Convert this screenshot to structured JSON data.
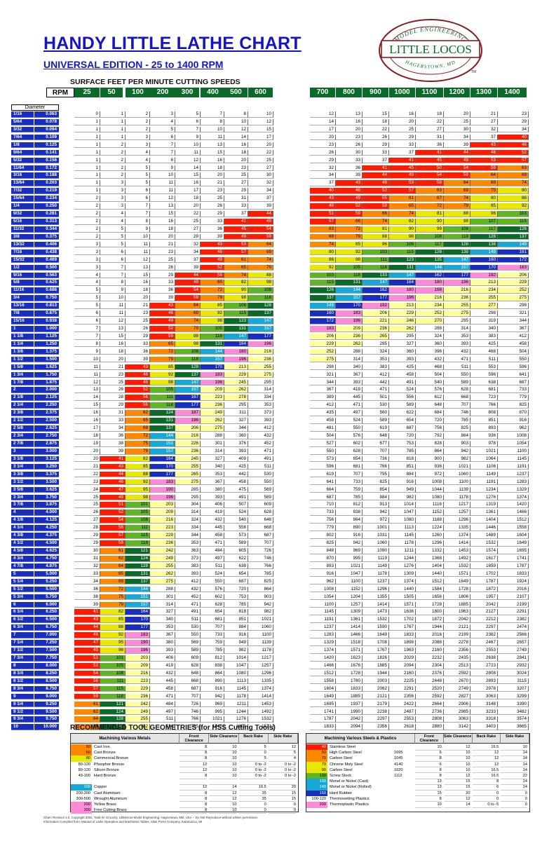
{
  "header": {
    "title": "HANDY LITTLE LATHE CHART",
    "subtitle": "UNIVERSAL EDITION - 25 to 1400 RPM",
    "sfpm_label": "SURFACE FEET PER MINUTE CUTTING SPEEDS",
    "rpm_label": "RPM",
    "diameter_label": "Diameter"
  },
  "logo": {
    "top": "MODEL ENGINEERING",
    "main": "LITTLE LOCOS",
    "bottom": "HAGERSTOWN, MD",
    "tm": "TM"
  },
  "rpm": [
    25,
    50,
    100,
    200,
    300,
    400,
    500,
    600,
    700,
    800,
    900,
    1000,
    1100,
    1200,
    1300,
    1400
  ],
  "fractions": [
    "1/16",
    "5/64",
    "3/32",
    "7/64",
    "1/8",
    "9/64",
    "5/32",
    "11/64",
    "3/16",
    "13/64",
    "7/32",
    "15/64",
    "1/4",
    "9/32",
    "5/16",
    "11/32",
    "3/8",
    "13/32",
    "7/16",
    "15/32",
    "1/2",
    "9/16",
    "5/8",
    "11/16",
    "3/4",
    "13/16",
    "7/8",
    "15/16",
    "1",
    "1 1/8",
    "1 1/4",
    "1 3/8",
    "1 1/2",
    "1 5/8",
    "1 3/4",
    "1 7/8",
    "2",
    "2 1/8",
    "2 1/4",
    "2 3/8",
    "2 1/2",
    "2 5/8",
    "2 3/4",
    "2 7/8",
    "3",
    "3 1/8",
    "3 1/4",
    "3 3/8",
    "3 1/2",
    "3 5/8",
    "3 3/4",
    "3 7/8",
    "4",
    "4 1/8",
    "4 1/4",
    "4 3/8",
    "4 1/2",
    "4 5/8",
    "4 3/4",
    "4 7/8",
    "5",
    "5 1/4",
    "5 1/2",
    "5 3/4",
    "6",
    "6 1/4",
    "6 1/2",
    "6 3/4",
    "7",
    "7 1/4",
    "7 1/2",
    "7 3/4",
    "8",
    "8 1/4",
    "8 1/2",
    "8 3/4",
    "9",
    "9 1/4",
    "9 1/2",
    "9 3/4",
    "10"
  ],
  "decimals": [
    "0.063",
    "0.078",
    "0.094",
    "0.109",
    "0.125",
    "0.141",
    "0.156",
    "0.172",
    "0.188",
    "0.203",
    "0.219",
    "0.234",
    "0.250",
    "0.281",
    "0.313",
    "0.344",
    "0.375",
    "0.406",
    "0.438",
    "0.469",
    "0.500",
    "0.563",
    "0.625",
    "0.688",
    "0.750",
    "0.813",
    "0.875",
    "0.938",
    "1.000",
    "1.125",
    "1.250",
    "1.375",
    "1.500",
    "1.625",
    "1.750",
    "1.875",
    "2.000",
    "2.125",
    "2.250",
    "2.375",
    "2.500",
    "2.625",
    "2.750",
    "2.875",
    "3.000",
    "3.125",
    "3.250",
    "3.375",
    "3.500",
    "3.625",
    "3.750",
    "3.875",
    "4.000",
    "4.125",
    "4.250",
    "4.375",
    "4.500",
    "4.625",
    "4.750",
    "4.875",
    "5.000",
    "5.250",
    "5.500",
    "5.750",
    "6.000",
    "6.250",
    "6.500",
    "6.750",
    "7.000",
    "7.250",
    "7.500",
    "7.750",
    "8.000",
    "8.250",
    "8.500",
    "8.750",
    "9.000",
    "9.250",
    "9.500",
    "9.750",
    "10.000"
  ],
  "band_colors": [
    "#ffffff",
    "#ff1a00",
    "#ff8800",
    "#e8e800",
    "#5fb526",
    "#0a6b28",
    "#18a8d8",
    "#1a2ebd",
    "#ff8ad8",
    "#ffff99",
    "#ffffff"
  ],
  "sfm_bands": [
    40,
    60,
    80,
    100,
    120,
    140,
    160,
    180,
    200,
    280
  ],
  "tool_geometries": {
    "title": "RECOMMENDED TOOL GEOMETRIES (for HSS Cutting Tools)",
    "left": {
      "header": "Machining Various Metals",
      "cols": [
        "Front Clearance",
        "Side Clearance",
        "Back Rake",
        "Side Rake"
      ],
      "rows": [
        {
          "sfm": "50",
          "name": "Cast Iron",
          "vals": [
            "8",
            "10",
            "5",
            "12"
          ],
          "color": "#ff8800"
        },
        {
          "sfm": "60",
          "name": "Cast Bronze",
          "vals": [
            "8",
            "10",
            "0",
            "5"
          ],
          "color": "#ff8800"
        },
        {
          "sfm": "80",
          "name": "Commercial Bronze",
          "vals": [
            "8",
            "10",
            "5",
            "4"
          ],
          "color": "#e8e800"
        },
        {
          "sfm": "80-120",
          "name": "Phosphor Bronze",
          "vals": [
            "12",
            "10",
            "0 to -2",
            "0 to -2"
          ],
          "color": "#ffffff"
        },
        {
          "sfm": "80-120",
          "name": "Silicon Bronze",
          "vals": [
            "12",
            "10",
            "0 to -2",
            "0 to -2"
          ],
          "color": "#ffffff"
        },
        {
          "sfm": "49-100",
          "name": "Hard Bronze",
          "vals": [
            "8",
            "10",
            "0 to -2",
            "0 to -2"
          ],
          "color": "#ffffff"
        },
        {
          "sfm": "",
          "name": "",
          "vals": [
            "",
            "",
            "",
            ""
          ],
          "color": "#ffffff"
        },
        {
          "sfm": "100",
          "name": "Copper",
          "vals": [
            "12",
            "14",
            "16.5",
            "20"
          ],
          "color": "#18a8d8"
        },
        {
          "sfm": "200-300",
          "name": "Cast Aluminum",
          "vals": [
            "8",
            "12",
            "35",
            "15"
          ],
          "color": "#ffffff"
        },
        {
          "sfm": "300-500",
          "name": "Wrought Aluminum",
          "vals": [
            "8",
            "12",
            "35",
            "15"
          ],
          "color": "#ffffff"
        },
        {
          "sfm": "200",
          "name": "Yellow Brass",
          "vals": [
            "8",
            "10",
            "0",
            "0"
          ],
          "color": "#ff8ad8"
        },
        {
          "sfm": "300",
          "name": "Free Cutting Brass",
          "vals": [
            "8",
            "10",
            "0",
            "0"
          ],
          "color": "#ff8ad8"
        }
      ]
    },
    "right": {
      "header": "Machining Various Steels & Plastics",
      "cols": [
        "Front Clearance",
        "Side Clearance",
        "Back Rake",
        "Side Rake"
      ],
      "rows": [
        {
          "sfm": "40",
          "name": "Stainless Steel",
          "code": "",
          "vals": [
            "10",
            "12",
            "16.5",
            "10"
          ],
          "color": "#ff1a00"
        },
        {
          "sfm": "50",
          "name": "High Carbon Steel",
          "code": "1095",
          "vals": [
            "6",
            "10",
            "12",
            "14"
          ],
          "color": "#ff8800"
        },
        {
          "sfm": "70",
          "name": "Carbon Steel",
          "code": "1045",
          "vals": [
            "8",
            "10",
            "12",
            "14"
          ],
          "color": "#ff8800"
        },
        {
          "sfm": "70",
          "name": "Chrome Moly Steel",
          "code": "4140",
          "vals": [
            "6",
            "10",
            "12",
            "14"
          ],
          "color": "#e8e800"
        },
        {
          "sfm": "90",
          "name": "Carbon Steel",
          "code": "1020",
          "vals": [
            "8",
            "10",
            "16.5",
            "14"
          ],
          "color": "#e8e800"
        },
        {
          "sfm": "100",
          "name": "Screw Stock",
          "code": "1112",
          "vals": [
            "8",
            "12",
            "16.5",
            "22"
          ],
          "color": "#5fb526"
        },
        {
          "sfm": "100",
          "name": "Monel or Nickel (Cast)",
          "code": "",
          "vals": [
            "13",
            "15",
            "8",
            "14"
          ],
          "color": "#18a8d8"
        },
        {
          "sfm": "140",
          "name": "Monel or Nickel (Rolled)",
          "code": "",
          "vals": [
            "13",
            "15",
            "6",
            "14"
          ],
          "color": "#18a8d8"
        },
        {
          "sfm": "150",
          "name": "Hard Rubber",
          "code": "",
          "vals": [
            "15",
            "20",
            "0",
            "0"
          ],
          "color": "#1a2ebd"
        },
        {
          "sfm": "100-120",
          "name": "Thermosetting Plastics",
          "code": "",
          "vals": [
            "8",
            "12",
            "0",
            "0"
          ],
          "color": "#ffffff"
        },
        {
          "sfm": "200",
          "name": "Thermoplastic Plastics",
          "code": "",
          "vals": [
            "10",
            "14",
            "0 to -5",
            "0"
          ],
          "color": "#ff8ad8"
        }
      ]
    }
  },
  "footer": [
    "Chart: Revision 1.0, Copyright 2002, Todd W. Grouchy, Littlelocos Model Engineering, Hagerstown, MD, USA -- Do Not Reproduce without written permission.",
    "Information Compiled from: Manual of Lathe Operation and Machinists Tables, Atlas Press Company, Kalamazoo, MI"
  ]
}
